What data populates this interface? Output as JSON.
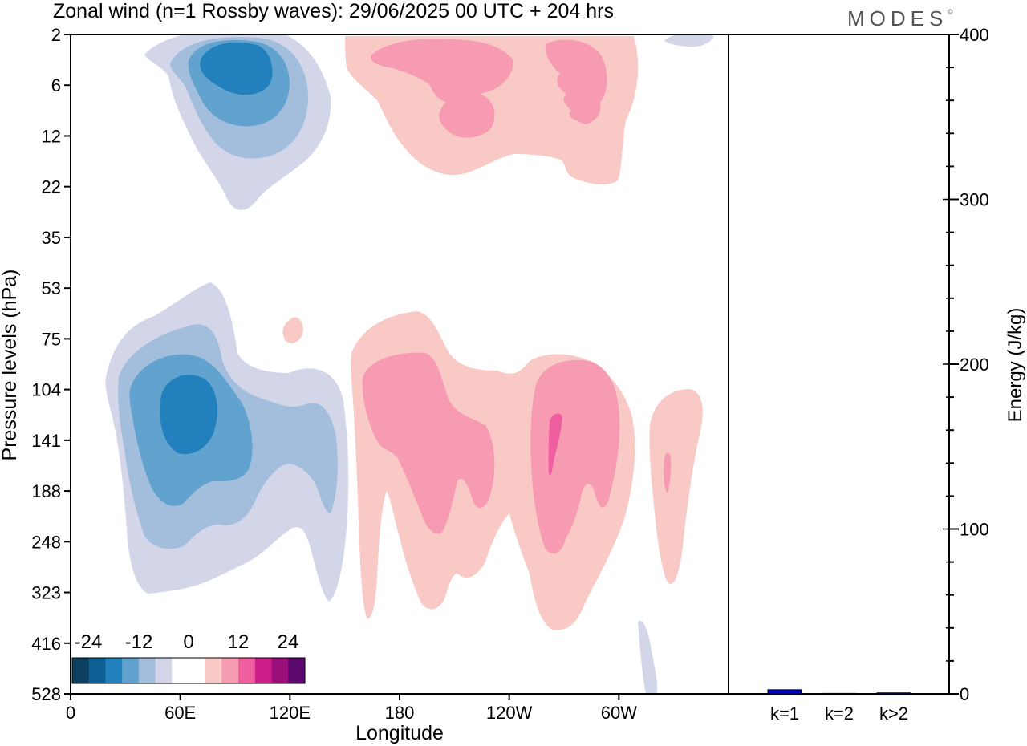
{
  "header": {
    "title": "Zonal wind (n=1 Rossby waves):  29/06/2025  00 UTC  + 204 hrs",
    "brand": "MODES",
    "brand_mark": "©"
  },
  "chart_data": [
    {
      "type": "contour",
      "xlabel": "Longitude",
      "ylabel": "Pressure levels (hPa)",
      "x_ticks": [
        "0",
        "60E",
        "120E",
        "180",
        "120W",
        "60W"
      ],
      "x_tick_degrees": [
        0,
        60,
        120,
        180,
        240,
        300
      ],
      "xlim": [
        0,
        360
      ],
      "y_ticks": [
        "2",
        "6",
        "12",
        "22",
        "35",
        "53",
        "75",
        "104",
        "141",
        "188",
        "248",
        "323",
        "416",
        "528"
      ],
      "colorbar": {
        "labels": [
          "-24",
          "-12",
          "0",
          "12",
          "24"
        ],
        "colors": [
          "#0d3f5e",
          "#0b5f95",
          "#2281bd",
          "#62a2ce",
          "#a3bddc",
          "#d3d6e9",
          "#ffffff",
          "#ffffff",
          "#f9c9c6",
          "#f79bb2",
          "#ef5e9e",
          "#cc1f8a",
          "#9a0f7a",
          "#5c0a6e"
        ]
      },
      "fields": [
        {
          "sign": "negative",
          "center_lon": 88,
          "center_level": "6",
          "min_level_color": "#2281bd",
          "note_color_levels": [
            "#d3d6e9",
            "#a3bddc",
            "#62a2ce",
            "#2281bd"
          ]
        },
        {
          "sign": "positive",
          "center_lon": 195,
          "center_level": "6",
          "colors": [
            "#f9c9c6",
            "#f79bb2"
          ]
        },
        {
          "sign": "negative",
          "center_lon": 66,
          "center_level": "141",
          "colors": [
            "#d3d6e9",
            "#a3bddc",
            "#62a2ce",
            "#2281bd"
          ]
        },
        {
          "sign": "positive",
          "center_lon": 200,
          "center_level": "141",
          "colors": [
            "#f9c9c6",
            "#f79bb2"
          ]
        },
        {
          "sign": "positive",
          "center_lon": 265,
          "center_level": "141",
          "colors": [
            "#f9c9c6",
            "#f79bb2",
            "#ef5e9e"
          ]
        },
        {
          "sign": "positive",
          "center_lon": 325,
          "center_level": "141",
          "colors": [
            "#f9c9c6",
            "#f79bb2"
          ]
        }
      ]
    },
    {
      "type": "bar",
      "categories": [
        "k=1",
        "k=2",
        "k>2"
      ],
      "values": [
        2.5,
        0.3,
        0.6
      ],
      "ylabel": "Energy (J/kg)",
      "ylim": [
        0,
        400
      ],
      "y_ticks": [
        0,
        100,
        200,
        300,
        400
      ],
      "bar_color": "#0000cc"
    }
  ]
}
